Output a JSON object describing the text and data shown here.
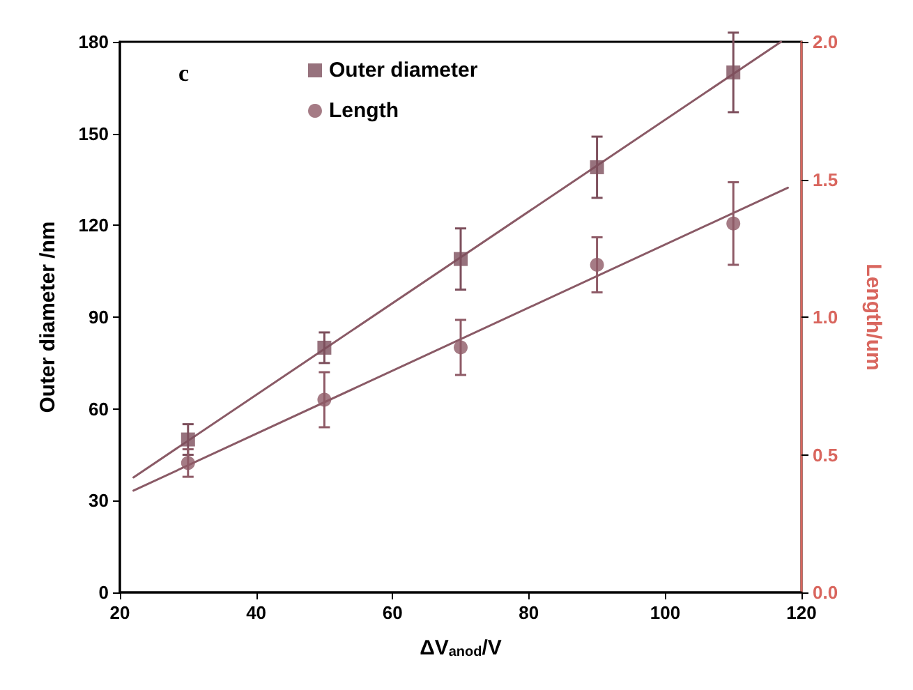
{
  "chart_data": {
    "type": "scatter",
    "xlabel": "ΔV$_{anod}$/V",
    "ylabel": "Outer diameter /nm",
    "y2label": "Length/um",
    "annotations": [
      "c"
    ],
    "xlim": [
      20,
      120
    ],
    "xticks": [
      20,
      40,
      60,
      80,
      100,
      120
    ],
    "ylim": [
      0,
      180
    ],
    "yticks": [
      0,
      30,
      60,
      90,
      120,
      150,
      180
    ],
    "y2lim": [
      0,
      2
    ],
    "y2ticks": [
      {
        "value": 0,
        "label": "0.0"
      },
      {
        "value": 0.5,
        "label": "0.5"
      },
      {
        "value": 1,
        "label": "1.0"
      },
      {
        "value": 1.5,
        "label": "1.5"
      },
      {
        "value": 2,
        "label": "2.0"
      }
    ],
    "grid": false,
    "legend": "top left",
    "series": [
      {
        "name": "Outer diameter",
        "marker": "square",
        "color": "#7d4f5c",
        "x": [
          30,
          50,
          70,
          90,
          110
        ],
        "values": [
          50,
          80,
          109,
          139,
          170
        ],
        "errors": [
          5,
          5,
          10,
          10,
          13
        ]
      },
      {
        "name": "Length",
        "marker": "circle",
        "axis": "y2",
        "color": "#8e5a66",
        "x": [
          30,
          50,
          70,
          90,
          110
        ],
        "values": [
          0.47,
          0.7,
          0.89,
          1.19,
          1.34
        ],
        "errors": [
          0.05,
          0.1,
          0.1,
          0.1,
          0.15
        ]
      },
      {
        "type": "line",
        "marker": "none",
        "color": "#8a5a66",
        "x": [
          22,
          117
        ],
        "values": [
          37.6,
          180
        ]
      },
      {
        "type": "line",
        "marker": "none",
        "axis": "y2",
        "color": "#8a5a66",
        "x": [
          22,
          118
        ],
        "values": [
          0.37,
          1.47
        ]
      }
    ]
  }
}
